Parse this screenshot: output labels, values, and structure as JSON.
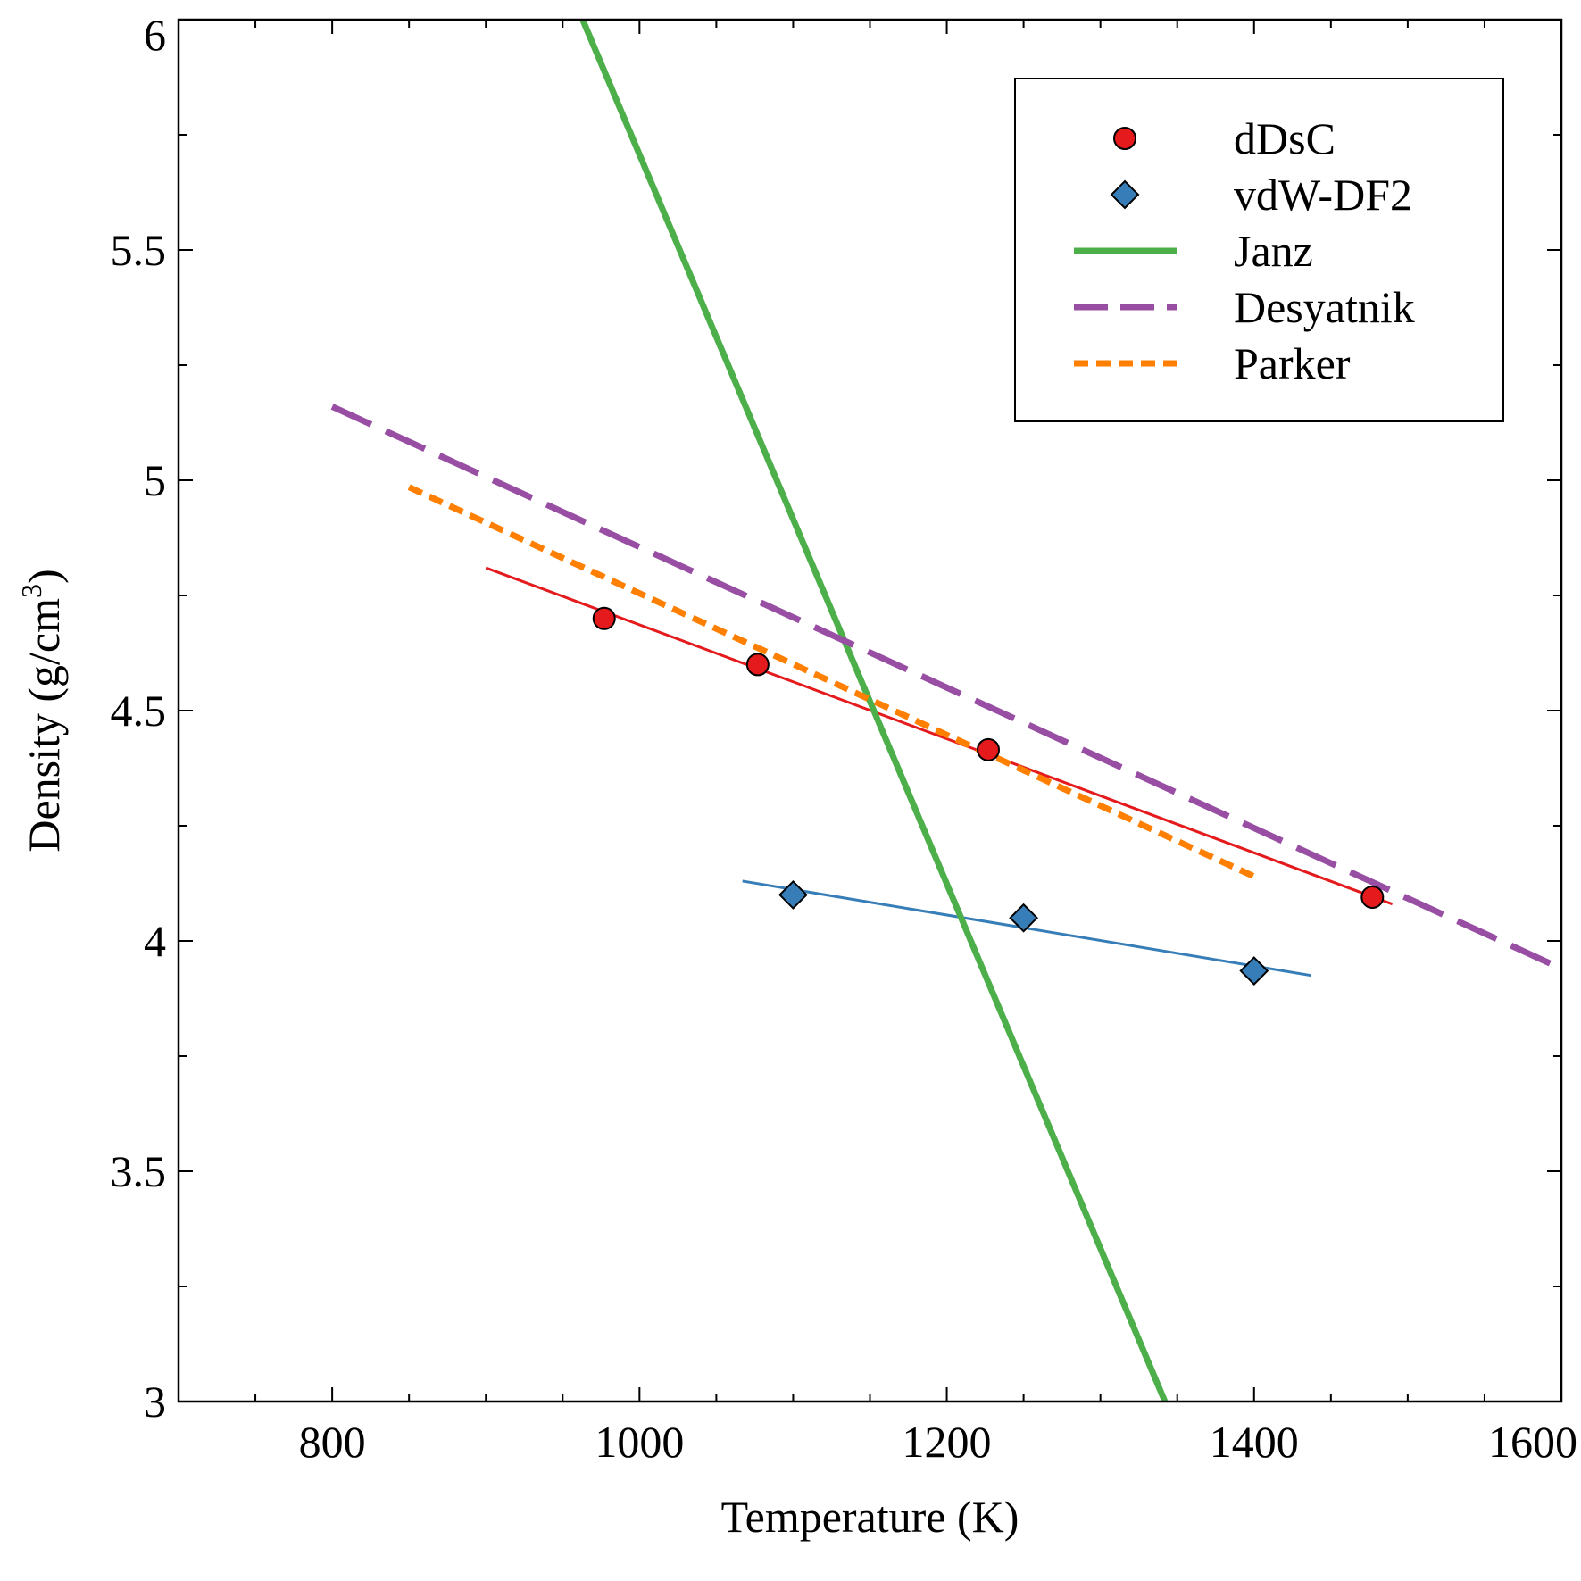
{
  "chart_data": {
    "type": "scatter",
    "xlabel": "Temperature (K)",
    "ylabel_main": "Density (g/cm",
    "ylabel_sup": "3",
    "ylabel_close": ")",
    "xlim": [
      700,
      1600
    ],
    "ylim": [
      3,
      6
    ],
    "x_ticks": [
      800,
      1000,
      1200,
      1400,
      1600
    ],
    "x_tick_labels": [
      "800",
      "1000",
      "1200",
      "1400",
      "1600"
    ],
    "y_ticks": [
      3,
      3.5,
      4,
      4.5,
      5,
      5.5,
      6
    ],
    "y_tick_labels": [
      "3",
      "3.5",
      "4",
      "4.5",
      "5",
      "5.5",
      "6"
    ],
    "x_minor_step": 50,
    "y_minor_step": 0.25,
    "grid": false,
    "legend_position": "top-right",
    "series": [
      {
        "name": "dDsC",
        "kind": "markers",
        "marker": "circle",
        "color": "#e41a1c",
        "x": [
          977,
          1077,
          1227,
          1477
        ],
        "y": [
          4.7,
          4.6,
          4.415,
          4.095
        ],
        "fit": {
          "x": [
            900,
            1490
          ],
          "y": [
            4.81,
            4.08
          ],
          "color": "#e41a1c",
          "width": 3
        }
      },
      {
        "name": "vdW-DF2",
        "kind": "markers",
        "marker": "diamond",
        "color": "#377eb8",
        "x": [
          1100,
          1250,
          1400
        ],
        "y": [
          4.1,
          4.05,
          3.935
        ],
        "fit": {
          "x": [
            1067,
            1437
          ],
          "y": [
            4.13,
            3.925
          ],
          "color": "#377eb8",
          "width": 3
        }
      },
      {
        "name": "Janz",
        "kind": "line",
        "style": "solid",
        "color": "#4daf4a",
        "x": [
          963,
          1342
        ],
        "y": [
          6.0,
          3.0
        ]
      },
      {
        "name": "Desyatnik",
        "kind": "line",
        "style": "long-dash",
        "color": "#984ea3",
        "x": [
          800,
          1600
        ],
        "y": [
          5.16,
          3.94
        ]
      },
      {
        "name": "Parker",
        "kind": "line",
        "style": "short-dash",
        "color": "#ff7f00",
        "x": [
          850,
          1400
        ],
        "y": [
          4.985,
          4.14
        ]
      }
    ]
  }
}
